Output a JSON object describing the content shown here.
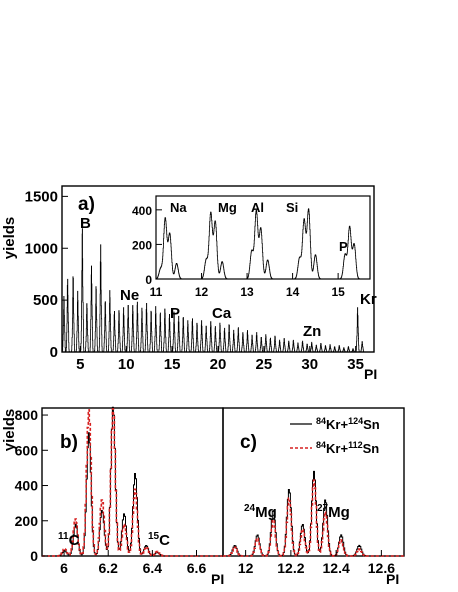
{
  "chart_data": [
    {
      "panel": "a)",
      "type": "line",
      "ylabel": "yields",
      "xlabel": "PI",
      "xlim": [
        3,
        37
      ],
      "ylim": [
        0,
        1600
      ],
      "xticks": [
        "5",
        "10",
        "15",
        "20",
        "25",
        "30",
        "35"
      ],
      "yticks": [
        "0",
        "500",
        "1000",
        "1500"
      ],
      "element_labels": [
        "B",
        "Ne",
        "P",
        "Ca",
        "Zn",
        "Kr"
      ],
      "series": [
        {
          "type": "peaks",
          "x": [
            3.2,
            3.6,
            4.2,
            4.7,
            5.2,
            5.7,
            6.2,
            6.7,
            7.2,
            7.7,
            8.2,
            8.7,
            9.2,
            9.7,
            10.2,
            10.7,
            11.2,
            11.7,
            12.2,
            12.7,
            13.2,
            13.7,
            14.2,
            14.7,
            15.2,
            15.7,
            16.2,
            16.7,
            17.2,
            17.7,
            18.2,
            18.7,
            19.2,
            19.7,
            20.2,
            20.7,
            21.2,
            21.7,
            22.2,
            22.7,
            23.2,
            23.7,
            24.2,
            24.7,
            25.2,
            25.7,
            26.2,
            26.7,
            27.2,
            27.7,
            28.2,
            28.7,
            29.2,
            29.7,
            30.2,
            30.7,
            31.2,
            31.7,
            32.2,
            32.7,
            33.2,
            33.7,
            34.2,
            34.7,
            35.2,
            35.7
          ],
          "values": [
            520,
            680,
            720,
            560,
            1170,
            450,
            800,
            620,
            990,
            480,
            570,
            380,
            390,
            410,
            450,
            430,
            470,
            410,
            450,
            390,
            420,
            370,
            400,
            350,
            380,
            330,
            330,
            290,
            310,
            270,
            290,
            250,
            280,
            240,
            270,
            220,
            260,
            200,
            230,
            180,
            200,
            160,
            180,
            140,
            160,
            130,
            150,
            110,
            130,
            100,
            110,
            85,
            100,
            75,
            90,
            65,
            80,
            60,
            70,
            50,
            60,
            40,
            50,
            30,
            410,
            100
          ]
        }
      ]
    },
    {
      "panel": "a) inset",
      "type": "line",
      "xlim": [
        11,
        15.7
      ],
      "ylim": [
        0,
        480
      ],
      "xticks": [
        "11",
        "12",
        "13",
        "14",
        "15"
      ],
      "yticks": [
        "0",
        "200",
        "400"
      ],
      "element_labels": [
        "Na",
        "Mg",
        "Al",
        "Si",
        "P"
      ],
      "series": [
        {
          "type": "peaks",
          "x": [
            11.1,
            11.2,
            11.3,
            11.45,
            12.1,
            12.2,
            12.3,
            12.45,
            13.1,
            13.2,
            13.3,
            13.45,
            14.15,
            14.25,
            14.35,
            14.5,
            15.15,
            15.25,
            15.35
          ],
          "values": [
            60,
            350,
            260,
            90,
            110,
            380,
            330,
            100,
            160,
            390,
            290,
            110,
            120,
            340,
            400,
            140,
            140,
            300,
            200
          ]
        }
      ]
    },
    {
      "panel": "b)",
      "type": "line",
      "ylabel": "yields",
      "xlabel": "PI",
      "xlim": [
        5.9,
        6.72
      ],
      "ylim": [
        0,
        840
      ],
      "xticks": [
        "6",
        "6.2",
        "6.4",
        "6.6"
      ],
      "yticks": [
        "0",
        "200",
        "400",
        "600",
        "800"
      ],
      "annotations": [
        {
          "sup": "11",
          "text": "C"
        },
        {
          "sup": "15",
          "text": "C"
        }
      ],
      "peaks": {
        "centers": [
          6.0,
          6.05,
          6.11,
          6.17,
          6.22,
          6.27,
          6.32,
          6.37,
          6.42
        ],
        "Kr124Sn": [
          30,
          180,
          700,
          260,
          850,
          240,
          470,
          60,
          20
        ],
        "Kr112Sn": [
          40,
          210,
          830,
          320,
          840,
          180,
          380,
          50,
          25
        ]
      }
    },
    {
      "panel": "c)",
      "type": "line",
      "xlabel": "PI",
      "xlim": [
        11.9,
        12.7
      ],
      "ylim": [
        0,
        840
      ],
      "xticks": [
        "12",
        "12.2",
        "12.4",
        "12.6"
      ],
      "annotations": [
        {
          "sup": "24",
          "text": "Mg"
        },
        {
          "sup": "27",
          "text": "Mg"
        }
      ],
      "legend": [
        {
          "sup1": "84",
          "a": "Kr+",
          "sup2": "124",
          "b": "Sn",
          "color": "#000000",
          "dash": "solid"
        },
        {
          "sup1": "84",
          "a": "Kr+",
          "sup2": "112",
          "b": "Sn",
          "color": "#d62020",
          "dash": "dashed"
        }
      ],
      "peaks": {
        "centers": [
          11.95,
          12.05,
          12.12,
          12.19,
          12.25,
          12.3,
          12.35,
          12.42,
          12.5
        ],
        "Kr124Sn": [
          60,
          120,
          260,
          380,
          180,
          480,
          320,
          120,
          60
        ],
        "Kr112Sn": [
          50,
          100,
          210,
          330,
          150,
          430,
          250,
          90,
          40
        ]
      }
    }
  ]
}
